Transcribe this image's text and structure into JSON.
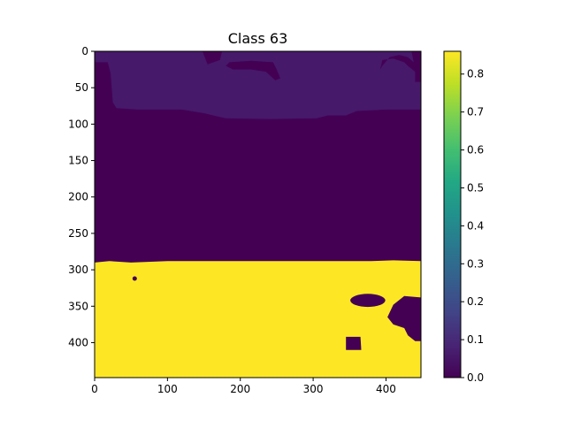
{
  "chart_data": {
    "type": "heatmap",
    "title": "Class 63",
    "xlabel": "",
    "ylabel": "",
    "image_extent": {
      "x": [
        0,
        448
      ],
      "y": [
        0,
        448
      ]
    },
    "x_ticks": [
      0,
      100,
      200,
      300,
      400
    ],
    "y_ticks": [
      0,
      50,
      100,
      150,
      200,
      250,
      300,
      350,
      400
    ],
    "colorbar": {
      "colormap": "viridis",
      "range": [
        0.0,
        0.86
      ],
      "ticks": [
        0.0,
        0.1,
        0.2,
        0.3,
        0.4,
        0.5,
        0.6,
        0.7,
        0.8
      ]
    },
    "regions": [
      {
        "label": "background",
        "value": 0.0
      },
      {
        "label": "upper band",
        "value": 0.07,
        "y_range": [
          0,
          80
        ]
      },
      {
        "label": "lower region",
        "value": 0.86,
        "y_range": [
          288,
          448
        ]
      },
      {
        "label": "holes in lower region",
        "value": 0.0
      }
    ],
    "grid": false
  },
  "colors": {
    "low": "#440154",
    "band": "#46196a",
    "high": "#fde725",
    "axis": "#000000",
    "background": "#ffffff"
  }
}
